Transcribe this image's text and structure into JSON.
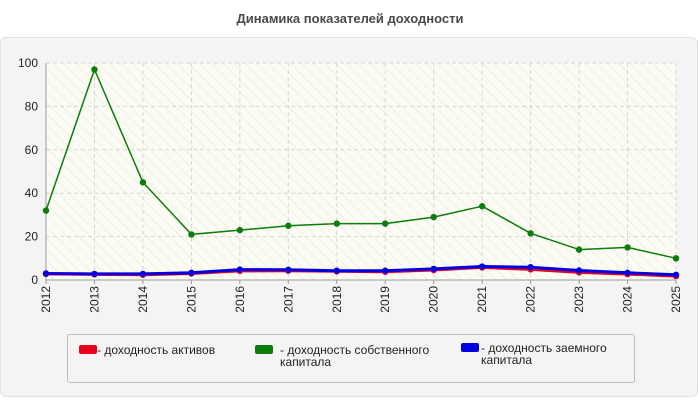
{
  "chart_data": {
    "type": "line",
    "title": "Динамика показателей доходности",
    "xlabel": "",
    "ylabel": "",
    "categories": [
      "2012",
      "2013",
      "2014",
      "2015",
      "2016",
      "2017",
      "2018",
      "2019",
      "2020",
      "2021",
      "2022",
      "2023",
      "2024",
      "2025"
    ],
    "ylim": [
      0,
      100
    ],
    "yticks": [
      0,
      20,
      40,
      60,
      80,
      100
    ],
    "grid": true,
    "legend_position": "bottom",
    "series": [
      {
        "name": "- доходность активов",
        "color": "#e8001c",
        "values": [
          2.8,
          2.6,
          2.4,
          3.0,
          4.2,
          4.3,
          4.0,
          3.8,
          4.6,
          5.8,
          4.9,
          3.5,
          2.7,
          1.8
        ]
      },
      {
        "name": "- доходность собственного капитала",
        "color": "#0a7d0a",
        "values": [
          32.0,
          97.0,
          45.0,
          21.0,
          23.0,
          25.0,
          26.0,
          26.0,
          29.0,
          34.0,
          21.5,
          14.0,
          15.0,
          10.0
        ]
      },
      {
        "name": "- доходность заемного капитала",
        "color": "#0000e0",
        "values": [
          3.0,
          2.8,
          2.8,
          3.3,
          4.8,
          4.7,
          4.3,
          4.3,
          5.1,
          6.2,
          5.9,
          4.4,
          3.3,
          2.4
        ]
      }
    ]
  }
}
